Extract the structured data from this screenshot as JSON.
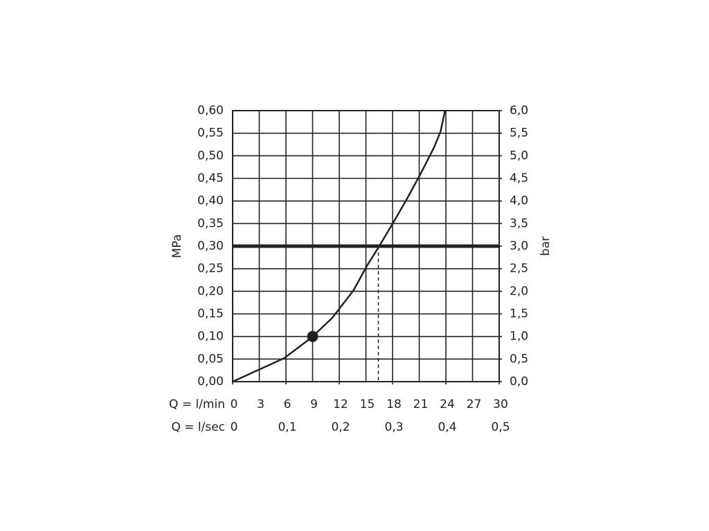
{
  "chart_data": {
    "type": "line",
    "xlabel": "Q = l/min",
    "x2label": "Q = l/sec",
    "ylabel": "MPa",
    "y2label": "bar",
    "x": [
      0,
      5.8,
      8.9,
      11.2,
      13.6,
      15.1,
      16.5,
      18.1,
      19.6,
      21.2,
      22.7,
      23.4,
      23.9
    ],
    "series": [
      {
        "color": "#222222",
        "values": [
          0,
          0.052,
          0.098,
          0.141,
          0.202,
          0.256,
          0.3,
          0.353,
          0.404,
          0.462,
          0.52,
          0.554,
          0.6
        ]
      }
    ],
    "xlim": [
      0,
      30
    ],
    "xticks": [
      0,
      3,
      6,
      9,
      12,
      15,
      18,
      21,
      24,
      27,
      30
    ],
    "x2lim": [
      0,
      0.5
    ],
    "x2ticks": [
      0,
      {
        "value": 0.1,
        "label": "0,1"
      },
      {
        "value": 0.2,
        "label": "0,2"
      },
      {
        "value": 0.3,
        "label": "0,3"
      },
      {
        "value": 0.4,
        "label": "0,4"
      },
      {
        "value": 0.5,
        "label": "0,5"
      }
    ],
    "ylim": [
      0,
      0.6
    ],
    "yticks": [
      {
        "value": 0,
        "label": "0,00"
      },
      {
        "value": 0.05,
        "label": "0,05"
      },
      {
        "value": 0.1,
        "label": "0,10"
      },
      {
        "value": 0.15,
        "label": "0,15"
      },
      {
        "value": 0.2,
        "label": "0,20"
      },
      {
        "value": 0.25,
        "label": "0,25"
      },
      {
        "value": 0.3,
        "label": "0,30"
      },
      {
        "value": 0.35,
        "label": "0,35"
      },
      {
        "value": 0.4,
        "label": "0,40"
      },
      {
        "value": 0.45,
        "label": "0,45"
      },
      {
        "value": 0.5,
        "label": "0,50"
      },
      {
        "value": 0.55,
        "label": "0,55"
      },
      {
        "value": 0.6,
        "label": "0,60"
      }
    ],
    "y2lim": [
      0,
      6
    ],
    "y2ticks": [
      {
        "value": 0,
        "label": "0,0"
      },
      {
        "value": 0.5,
        "label": "0,5"
      },
      {
        "value": 1,
        "label": "1,0"
      },
      {
        "value": 1.5,
        "label": "1,5"
      },
      {
        "value": 2,
        "label": "2,0"
      },
      {
        "value": 2.5,
        "label": "2,5"
      },
      {
        "value": 3,
        "label": "3,0"
      },
      {
        "value": 3.5,
        "label": "3,5"
      },
      {
        "value": 4,
        "label": "4,0"
      },
      {
        "value": 4.5,
        "label": "4,5"
      },
      {
        "value": 5,
        "label": "5,0"
      },
      {
        "value": 5.5,
        "label": "5,5"
      },
      {
        "value": 6,
        "label": "6,0"
      }
    ],
    "grid": true,
    "reference_y": 0.3,
    "reference_x": 16.4,
    "highlight_point": {
      "x": 9,
      "y": 0.1
    }
  }
}
